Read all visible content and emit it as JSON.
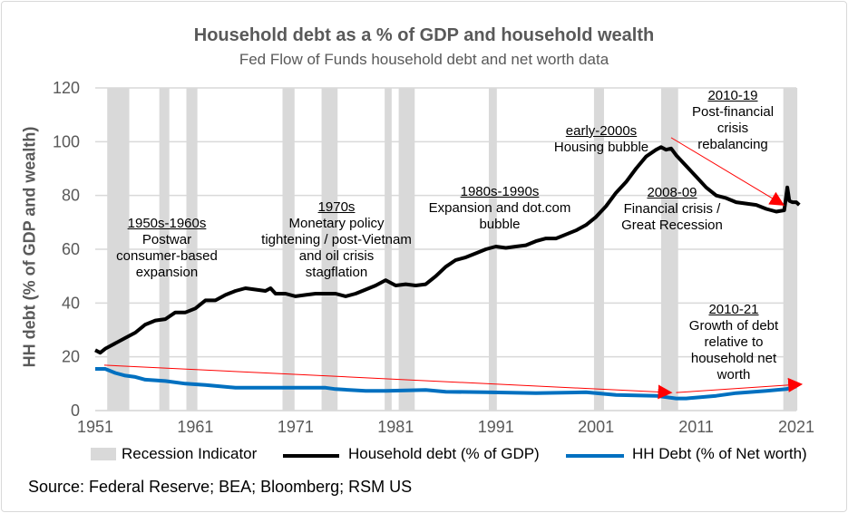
{
  "chart_data": {
    "type": "line",
    "title": "Household debt as a % of GDP and household wealth",
    "subtitle": "Fed Flow of Funds household debt and net worth data",
    "ylabel": "HH debt (% of GDP and wealth)",
    "xlabel": "",
    "xlim": [
      1951,
      2021
    ],
    "ylim": [
      0,
      120
    ],
    "x_ticks": [
      "1951",
      "1961",
      "1971",
      "1981",
      "1991",
      "2001",
      "2011",
      "2021"
    ],
    "y_ticks": [
      "0",
      "20",
      "40",
      "60",
      "80",
      "100",
      "120"
    ],
    "grid": true,
    "legend_placement": "bottom",
    "recessions": [
      [
        1952.2,
        1954.4
      ],
      [
        1957.4,
        1958.4
      ],
      [
        1960.1,
        1961.2
      ],
      [
        1969.7,
        1970.9
      ],
      [
        1973.6,
        1975.2
      ],
      [
        1979.9,
        1980.6
      ],
      [
        1981.3,
        1982.9
      ],
      [
        1990.3,
        1991.1
      ],
      [
        2000.8,
        2001.8
      ],
      [
        2007.5,
        2009.2
      ],
      [
        2019.7,
        2021.1
      ]
    ],
    "series": [
      {
        "name": "Recession Indicator",
        "color": "#d9d9d9",
        "kind": "bars"
      },
      {
        "name": "Household debt (% of GDP)",
        "color": "#000000",
        "x": [
          1951,
          1951.5,
          1952,
          1953,
          1954,
          1955,
          1956,
          1957,
          1958,
          1959,
          1960,
          1961,
          1962,
          1963,
          1964,
          1965,
          1966,
          1967,
          1968,
          1968.5,
          1969,
          1970,
          1971,
          1972,
          1973,
          1974,
          1975,
          1976,
          1977,
          1978,
          1979,
          1980,
          1981,
          1982,
          1983,
          1984,
          1985,
          1986,
          1987,
          1988,
          1989,
          1990,
          1991,
          1992,
          1993,
          1994,
          1995,
          1996,
          1997,
          1998,
          1999,
          2000,
          2001,
          2002,
          2003,
          2004,
          2005,
          2006,
          2007,
          2007.5,
          2008,
          2008.5,
          2009,
          2010,
          2011,
          2012,
          2013,
          2014,
          2015,
          2016,
          2017,
          2018,
          2019,
          2019.8,
          2020.1,
          2020.3,
          2020.6,
          2021,
          2021.3
        ],
        "y": [
          22.5,
          21.5,
          23,
          25,
          27,
          29,
          32,
          33.5,
          34,
          36.5,
          36.5,
          38,
          41,
          41,
          43,
          44.5,
          45.5,
          45,
          44.5,
          45.5,
          43.5,
          43.5,
          42.5,
          43,
          43.5,
          43.5,
          43.5,
          42.5,
          43.5,
          45,
          46.5,
          48.5,
          46.5,
          47,
          46.5,
          47,
          50,
          53.5,
          56,
          57,
          58.5,
          60,
          61,
          60.5,
          61,
          61.5,
          63,
          64,
          64,
          65.5,
          67,
          69,
          72,
          76,
          81,
          85,
          90,
          94.5,
          97,
          98,
          97,
          97.5,
          95,
          91,
          87,
          83,
          80,
          79,
          77.5,
          77,
          76.5,
          75,
          74,
          74.5,
          83,
          78,
          77.5,
          77.5,
          76.5
        ]
      },
      {
        "name": "HH Debt (% of Net worth)",
        "color": "#0070c0",
        "x": [
          1951,
          1952,
          1953,
          1954,
          1955,
          1956,
          1958,
          1960,
          1962,
          1965,
          1968,
          1972,
          1974,
          1975,
          1978,
          1980,
          1984,
          1986,
          1990,
          1995,
          2000,
          2003,
          2007,
          2009,
          2010,
          2013,
          2015,
          2018,
          2020,
          2021
        ],
        "y": [
          15.5,
          15.5,
          14,
          13,
          12.5,
          11.5,
          11,
          10,
          9.5,
          8.5,
          8.5,
          8.5,
          8.5,
          8,
          7.3,
          7.3,
          7.7,
          7,
          6.8,
          6.5,
          6.8,
          5.8,
          5.5,
          4.5,
          4.5,
          5.5,
          6.5,
          7.3,
          8,
          9
        ]
      }
    ],
    "arrows": [
      {
        "from": [
          1951.9,
          16.9
        ],
        "to": [
          2008.5,
          6.7
        ],
        "color": "#ff0000"
      },
      {
        "from": [
          2009,
          6.7
        ],
        "to": [
          2021.5,
          9.8
        ],
        "color": "#ff0000"
      },
      {
        "from": [
          2008.5,
          101.5
        ],
        "to": [
          2019.7,
          76.5
        ],
        "color": "#ff0000"
      }
    ],
    "annotations": [
      {
        "heading": "1950s-1960s",
        "lines": [
          "Postwar",
          "consumer-based",
          "expansion"
        ]
      },
      {
        "heading": "1970s",
        "lines": [
          "Monetary policy",
          "tightening / post-Vietnam",
          "and oil crisis",
          "stagflation"
        ]
      },
      {
        "heading": "1980s-1990s",
        "lines": [
          "Expansion and dot.com",
          "bubble"
        ]
      },
      {
        "heading": "early-2000s",
        "lines": [
          "Housing bubble"
        ]
      },
      {
        "heading": "2008-09",
        "lines": [
          "Financial crisis /",
          "Great Recession"
        ]
      },
      {
        "heading": "2010-19",
        "lines": [
          "Post-financial",
          "crisis",
          "rebalancing"
        ]
      },
      {
        "heading": "2010-21",
        "lines": [
          "Growth of debt",
          "relative to",
          "household net",
          "worth"
        ]
      }
    ]
  },
  "source": "Source: Federal Reserve; BEA; Bloomberg; RSM US"
}
